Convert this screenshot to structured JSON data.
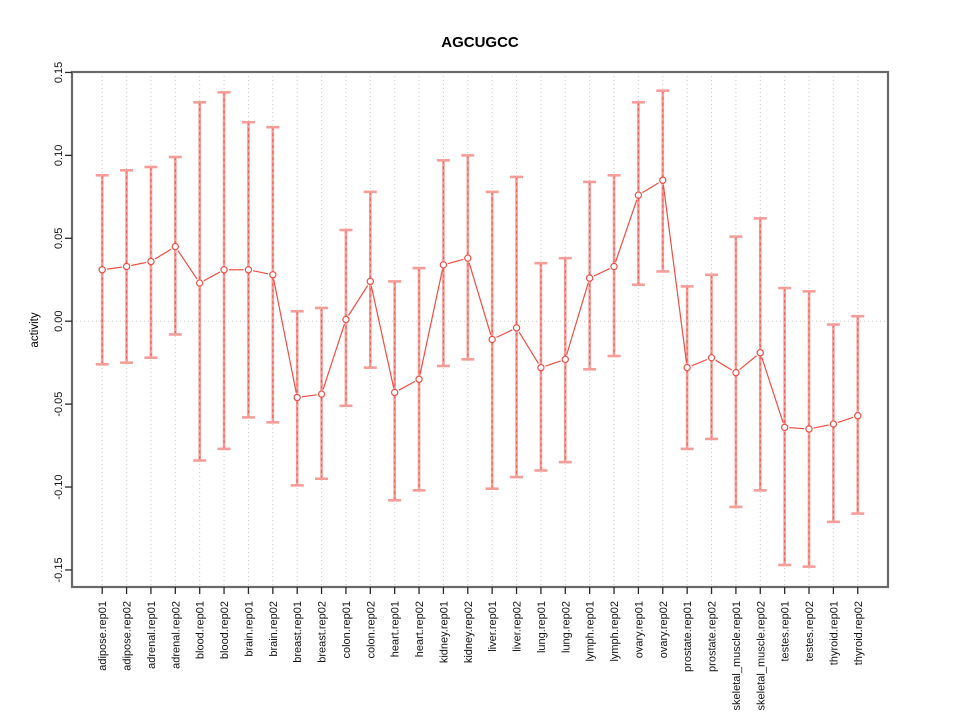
{
  "chart_data": {
    "type": "line",
    "subtype": "points-with-error-bars",
    "title": "AGCUGCC",
    "xlabel": "",
    "ylabel": "activity",
    "ylim": [
      -0.16,
      0.151
    ],
    "grid": {
      "vertical_dotted_gridlines": true,
      "zero_dotted_line": true
    },
    "legend_position": "none",
    "yticks": [
      {
        "value": 0.15,
        "label": "0.15"
      },
      {
        "value": 0.1,
        "label": "0.10"
      },
      {
        "value": 0.05,
        "label": "0.05"
      },
      {
        "value": 0.0,
        "label": "0.00"
      },
      {
        "value": -0.05,
        "label": "-0.05"
      },
      {
        "value": -0.1,
        "label": "-0.10"
      },
      {
        "value": -0.15,
        "label": "-0.15"
      }
    ],
    "categories": [
      "adipose.rep01",
      "adipose.rep02",
      "adrenal.rep01",
      "adrenal.rep02",
      "blood.rep01",
      "blood.rep02",
      "brain.rep01",
      "brain.rep02",
      "breast.rep01",
      "breast.rep02",
      "colon.rep01",
      "colon.rep02",
      "heart.rep01",
      "heart.rep02",
      "kidney.rep01",
      "kidney.rep02",
      "liver.rep01",
      "liver.rep02",
      "lung.rep01",
      "lung.rep02",
      "lymph.rep01",
      "lymph.rep02",
      "ovary.rep01",
      "ovary.rep02",
      "prostate.rep01",
      "prostate.rep02",
      "skeletal_muscle.rep01",
      "skeletal_muscle.rep02",
      "testes.rep01",
      "testes.rep02",
      "thyroid.rep01",
      "thyroid.rep02"
    ],
    "series": [
      {
        "name": "activity",
        "values": [
          0.031,
          0.033,
          0.036,
          0.045,
          0.023,
          0.031,
          0.031,
          0.028,
          -0.046,
          -0.044,
          0.001,
          0.024,
          -0.043,
          -0.035,
          0.034,
          0.038,
          -0.011,
          -0.004,
          -0.028,
          -0.023,
          0.026,
          0.033,
          0.076,
          0.085,
          -0.028,
          -0.022,
          -0.031,
          -0.019,
          -0.064,
          -0.065,
          -0.062,
          -0.057
        ],
        "lower": [
          -0.026,
          -0.025,
          -0.022,
          -0.008,
          -0.084,
          -0.077,
          -0.058,
          -0.061,
          -0.099,
          -0.095,
          -0.051,
          -0.028,
          -0.108,
          -0.102,
          -0.027,
          -0.023,
          -0.101,
          -0.094,
          -0.09,
          -0.085,
          -0.029,
          -0.021,
          0.022,
          0.03,
          -0.077,
          -0.071,
          -0.112,
          -0.102,
          -0.147,
          -0.148,
          -0.121,
          -0.116
        ],
        "upper": [
          0.088,
          0.091,
          0.093,
          0.099,
          0.132,
          0.138,
          0.12,
          0.117,
          0.006,
          0.008,
          0.055,
          0.078,
          0.024,
          0.032,
          0.097,
          0.1,
          0.078,
          0.087,
          0.035,
          0.038,
          0.084,
          0.088,
          0.132,
          0.139,
          0.021,
          0.028,
          0.051,
          0.062,
          0.02,
          0.018,
          -0.002,
          0.003
        ]
      }
    ],
    "colors": {
      "point_line": "#ee4d45",
      "errorbar": "#f59d98",
      "grid": "#c8c8c8",
      "zero_line": "#c8c8c8",
      "frame": "#6a6a6a",
      "tick": "#2b2b2b",
      "text": "#000000",
      "background": "#ffffff"
    }
  }
}
